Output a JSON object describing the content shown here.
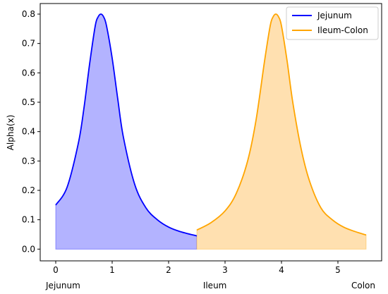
{
  "chart_data": {
    "type": "area",
    "title": "",
    "xlabel": "",
    "ylabel": "Alpha(x)",
    "xlim": [
      -0.275,
      5.775
    ],
    "ylim": [
      -0.04,
      0.836
    ],
    "xticks": [
      0,
      1,
      2,
      3,
      4,
      5
    ],
    "yticks": [
      0.0,
      0.1,
      0.2,
      0.3,
      0.4,
      0.5,
      0.6,
      0.7,
      0.8
    ],
    "grid": false,
    "legend_position": "top-right",
    "region_labels": [
      {
        "text": "Jejunum",
        "x": 0.13
      },
      {
        "text": "Ileum",
        "x": 2.82
      },
      {
        "text": "Colon",
        "x": 5.45
      }
    ],
    "series": [
      {
        "name": "Jejunum",
        "color": "#0000ff",
        "fill_color": "#b3b3ff",
        "x": [
          0.0,
          0.2,
          0.4,
          0.5,
          0.6,
          0.7,
          0.75,
          0.8,
          0.85,
          0.9,
          1.0,
          1.1,
          1.2,
          1.4,
          1.6,
          1.8,
          2.0,
          2.2,
          2.5
        ],
        "values": [
          0.15,
          0.21,
          0.36,
          0.48,
          0.63,
          0.76,
          0.79,
          0.8,
          0.79,
          0.76,
          0.65,
          0.51,
          0.38,
          0.22,
          0.14,
          0.1,
          0.075,
          0.06,
          0.045
        ]
      },
      {
        "name": "Ileum-Colon",
        "color": "#ffa500",
        "fill_color": "#ffe0b0",
        "x": [
          2.5,
          2.75,
          3.0,
          3.2,
          3.4,
          3.55,
          3.7,
          3.8,
          3.85,
          3.9,
          3.95,
          4.0,
          4.1,
          4.2,
          4.35,
          4.5,
          4.7,
          4.9,
          5.1,
          5.3,
          5.5
        ],
        "values": [
          0.065,
          0.09,
          0.13,
          0.19,
          0.3,
          0.44,
          0.64,
          0.76,
          0.79,
          0.8,
          0.79,
          0.76,
          0.64,
          0.5,
          0.34,
          0.23,
          0.14,
          0.1,
          0.075,
          0.06,
          0.048
        ]
      }
    ]
  }
}
